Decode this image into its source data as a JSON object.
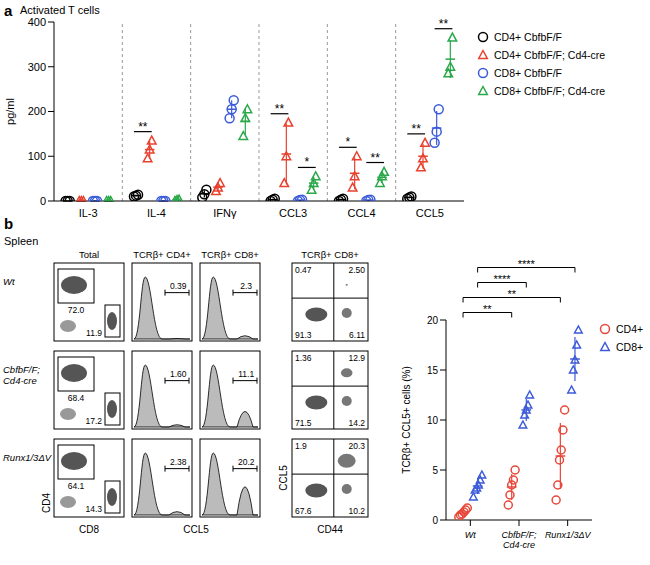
{
  "chart_data": [
    {
      "type": "scatter",
      "panel": "a",
      "title": "Activated T cells",
      "y_label": "pg/ml",
      "categories": [
        "IL-3",
        "IL-4",
        "IFNγ",
        "CCL3",
        "CCL4",
        "CCL5"
      ],
      "ylim": [
        0,
        400
      ],
      "yticks": [
        0,
        100,
        200,
        300,
        400
      ],
      "legend": "right",
      "series": [
        {
          "name": "CD4+ CbfbF/F",
          "color": "#000000",
          "marker": "circle",
          "values": [
            [
              0,
              0,
              0
            ],
            [
              10,
              12,
              14
            ],
            [
              8,
              15,
              25
            ],
            [
              0,
              3,
              5
            ],
            [
              0,
              3,
              5
            ],
            [
              5,
              8,
              10
            ]
          ],
          "mean": [
            0,
            12,
            16,
            3,
            3,
            8
          ],
          "sd": [
            0,
            2,
            8,
            2,
            2,
            2
          ]
        },
        {
          "name": "CD4+ CbfbF/F; Cd4-cre",
          "color": "#e8412e",
          "marker": "triangle",
          "values": [
            [
              0,
              0,
              0
            ],
            [
              95,
              115,
              135
            ],
            [
              22,
              30,
              40
            ],
            [
              40,
              100,
              175
            ],
            [
              30,
              55,
              100
            ],
            [
              75,
              95,
              130
            ]
          ],
          "mean": [
            0,
            115,
            31,
            105,
            62,
            100
          ],
          "sd": [
            0,
            20,
            9,
            68,
            36,
            28
          ]
        },
        {
          "name": "CD8+ CbfbF/F",
          "color": "#3b5bdb",
          "marker": "circle",
          "values": [
            [
              0,
              0,
              0
            ],
            [
              0,
              0,
              0
            ],
            [
              185,
              205,
              225
            ],
            [
              0,
              2,
              3
            ],
            [
              0,
              2,
              3
            ],
            [
              130,
              155,
              205
            ]
          ],
          "mean": [
            0,
            0,
            205,
            2,
            2,
            163
          ],
          "sd": [
            0,
            0,
            20,
            1,
            1,
            38
          ]
        },
        {
          "name": "CD8+ CbfbF/F; Cd4-cre",
          "color": "#2aa84a",
          "marker": "triangle",
          "values": [
            [
              0,
              0,
              0
            ],
            [
              0,
              2,
              3
            ],
            [
              145,
              185,
              205
            ],
            [
              25,
              40,
              55
            ],
            [
              40,
              55,
              65
            ],
            [
              285,
              300,
              365
            ]
          ],
          "mean": [
            0,
            2,
            178,
            40,
            53,
            317
          ],
          "sd": [
            0,
            1,
            30,
            15,
            13,
            42
          ]
        }
      ],
      "significance": [
        {
          "category": "IL-4",
          "pair": [
            "CD4+ CbfbF/F",
            "CD4+ CbfbF/F; Cd4-cre"
          ],
          "label": "**"
        },
        {
          "category": "CCL3",
          "pair": [
            "CD4+ CbfbF/F",
            "CD4+ CbfbF/F; Cd4-cre"
          ],
          "label": "**"
        },
        {
          "category": "CCL3",
          "pair": [
            "CD8+ CbfbF/F",
            "CD8+ CbfbF/F; Cd4-cre"
          ],
          "label": "*"
        },
        {
          "category": "CCL4",
          "pair": [
            "CD4+ CbfbF/F",
            "CD4+ CbfbF/F; Cd4-cre"
          ],
          "label": "*"
        },
        {
          "category": "CCL4",
          "pair": [
            "CD8+ CbfbF/F",
            "CD8+ CbfbF/F; Cd4-cre"
          ],
          "label": "**"
        },
        {
          "category": "CCL5",
          "pair": [
            "CD4+ CbfbF/F",
            "CD4+ CbfbF/F; Cd4-cre"
          ],
          "label": "**"
        },
        {
          "category": "CCL5",
          "pair": [
            "CD8+ CbfbF/F",
            "CD8+ CbfbF/F; Cd4-cre"
          ],
          "label": "**"
        }
      ]
    },
    {
      "type": "scatter",
      "panel": "b",
      "y_label": "TCRβ+ CCL5+ cells (%)",
      "categories": [
        "Wt",
        "CbfbF/F; Cd4-cre",
        "Runx1/3ΔV"
      ],
      "ylim": [
        0,
        20
      ],
      "yticks": [
        0,
        5,
        10,
        15,
        20
      ],
      "legend": "right",
      "series": [
        {
          "name": "CD4+",
          "color": "#e8473a",
          "marker": "circle",
          "values": [
            [
              0.3,
              0.5,
              0.6,
              0.8,
              1.0,
              1.2
            ],
            [
              1.5,
              2.5,
              3.5,
              4.0,
              5.0
            ],
            [
              2.0,
              3.5,
              6.0,
              7.0,
              9.0,
              11.0
            ]
          ],
          "mean": [
            0.7,
            3.3,
            6.4
          ],
          "sd": [
            0.3,
            1.3,
            3.3
          ]
        },
        {
          "name": "CD8+",
          "color": "#3d5bd9",
          "marker": "triangle",
          "values": [
            [
              2.3,
              3.0,
              3.2,
              3.5,
              4.0,
              4.5
            ],
            [
              9.5,
              10.5,
              11.0,
              11.5,
              12.5
            ],
            [
              13.0,
              15.0,
              16.0,
              17.5,
              19.0
            ]
          ],
          "mean": [
            3.4,
            11.0,
            16.1
          ],
          "sd": [
            0.8,
            1.1,
            2.2
          ]
        }
      ],
      "significance": [
        {
          "from": [
            "Wt",
            "CD4+"
          ],
          "to": [
            "CbfbF/F; Cd4-cre",
            "CD4+"
          ],
          "label": "**"
        },
        {
          "from": [
            "Wt",
            "CD4+"
          ],
          "to": [
            "Runx1/3ΔV",
            "CD4+"
          ],
          "label": "**"
        },
        {
          "from": [
            "Wt",
            "CD8+"
          ],
          "to": [
            "CbfbF/F; Cd4-cre",
            "CD8+"
          ],
          "label": "****"
        },
        {
          "from": [
            "Wt",
            "CD8+"
          ],
          "to": [
            "Runx1/3ΔV",
            "CD8+"
          ],
          "label": "****"
        }
      ]
    }
  ],
  "flow_cytometry": {
    "panel": "b",
    "title": "Spleen",
    "column_titles": [
      "Total",
      "TCRβ+ CD4+",
      "TCRβ+ CD8+",
      "TCRβ+ CD8+"
    ],
    "axis_labels": {
      "total_x": "CD8",
      "total_y": "CD4",
      "histogram_x": "CCL5",
      "quadrant_x": "CD44",
      "quadrant_y": "CCL5"
    },
    "rows": [
      {
        "label": "Wt",
        "cd4_gate": "72.0",
        "cd8_gate": "11.9",
        "cd4_ccl5": "0.39",
        "cd8_ccl5": "2.3",
        "quadrants": [
          "0.47",
          "2.50",
          "91.3",
          "6.11"
        ]
      },
      {
        "label": "CbfbF/F; Cd4-cre",
        "cd4_gate": "68.4",
        "cd8_gate": "17.2",
        "cd4_ccl5": "1.60",
        "cd8_ccl5": "11.1",
        "quadrants": [
          "1.36",
          "12.9",
          "71.5",
          "14.2"
        ]
      },
      {
        "label": "Runx1/3ΔV",
        "cd4_gate": "64.1",
        "cd8_gate": "14.3",
        "cd4_ccl5": "2.38",
        "cd8_ccl5": "20.2",
        "quadrants": [
          "1.9",
          "20.3",
          "67.6",
          "10.2"
        ]
      }
    ]
  }
}
